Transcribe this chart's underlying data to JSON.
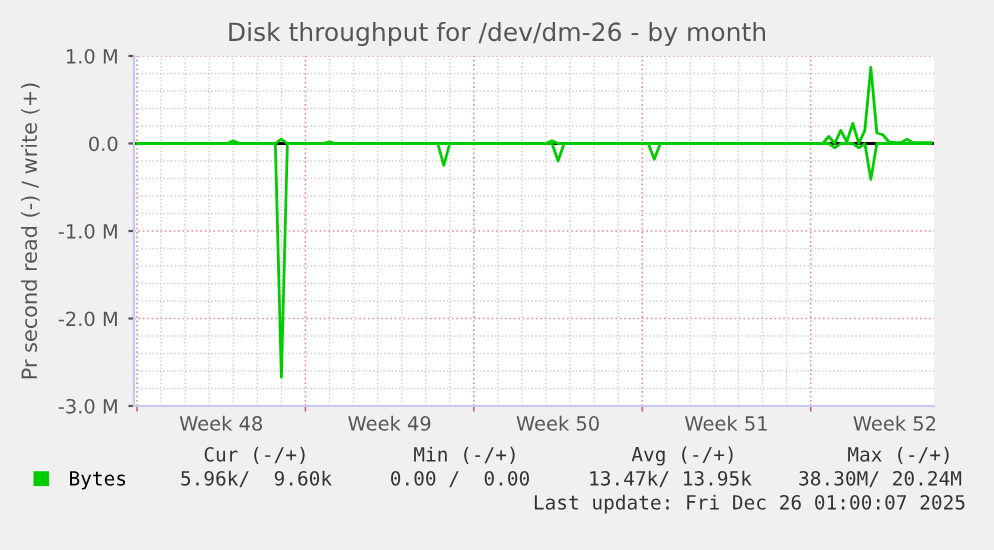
{
  "chart_data": {
    "type": "line",
    "title": "Disk throughput for /dev/dm-26 - by month",
    "ylabel": "Pr second read (-) / write (+)",
    "categories": [
      null,
      null,
      null,
      null,
      null,
      null,
      null,
      null,
      null,
      null,
      null,
      null,
      null,
      null,
      "Week 48",
      null,
      null,
      null,
      null,
      null,
      null,
      null,
      null,
      null,
      null,
      null,
      null,
      null,
      null,
      null,
      null,
      null,
      null,
      null,
      null,
      null,
      null,
      null,
      null,
      null,
      null,
      null,
      "Week 49",
      null,
      null,
      null,
      null,
      null,
      null,
      null,
      null,
      null,
      null,
      null,
      null,
      null,
      null,
      null,
      null,
      null,
      null,
      null,
      null,
      null,
      null,
      null,
      null,
      null,
      null,
      null,
      "Week 50",
      null,
      null,
      null,
      null,
      null,
      null,
      null,
      null,
      null,
      null,
      null,
      null,
      null,
      null,
      null,
      null,
      null,
      null,
      null,
      null,
      null,
      null,
      null,
      null,
      null,
      null,
      null,
      "Week 51",
      null,
      null,
      null,
      null,
      null,
      null,
      null,
      null,
      null,
      null,
      null,
      null,
      null,
      null,
      null,
      null,
      null,
      null,
      null,
      null,
      null,
      null,
      null,
      null,
      null,
      null,
      null,
      "Week 52",
      null,
      null,
      null,
      null,
      null,
      null
    ],
    "ylim": [
      -3,
      1
    ],
    "yticks": [
      {
        "value": -3,
        "label": "-3.0 M"
      },
      {
        "value": -2,
        "label": "-2.0 M"
      },
      {
        "value": -1,
        "label": "-1.0 M"
      },
      {
        "value": 0,
        "label": "0.0"
      },
      {
        "value": 1,
        "label": "1.0 M"
      }
    ],
    "grid": true,
    "legend": "bottom left",
    "marker": "none",
    "line_style": "solid",
    "ref_lines": [
      {
        "axis": "y",
        "value": 0,
        "color": "#000000"
      }
    ],
    "series": [
      {
        "color": "#00cc00",
        "values": [
          0,
          0,
          0,
          0,
          0,
          0,
          0,
          0,
          0,
          0,
          0,
          0,
          0,
          0,
          0,
          0,
          0,
          0,
          0,
          0,
          0,
          0,
          0,
          0,
          -2.67,
          0,
          0,
          0,
          0,
          0,
          0,
          0,
          0,
          0,
          0,
          0,
          0,
          0,
          0,
          0,
          0,
          0,
          0,
          0,
          0,
          0,
          0,
          0,
          0,
          0,
          0,
          -0.25,
          0,
          0,
          0,
          0,
          0,
          0,
          0,
          0,
          0,
          0,
          0,
          0,
          0,
          0,
          0,
          0,
          0,
          0,
          -0.2,
          0,
          0,
          0,
          0,
          0,
          0,
          0,
          0,
          0,
          0,
          0,
          0,
          0,
          0,
          0,
          -0.18,
          0,
          0,
          0,
          0,
          0,
          0,
          0,
          0,
          0,
          0,
          0,
          0,
          0,
          0,
          0,
          0,
          0,
          0,
          0,
          0,
          0,
          0,
          0,
          0,
          0,
          0,
          0,
          0,
          0,
          -0.05,
          0,
          0,
          0,
          -0.05,
          0,
          -0.41,
          0,
          0,
          0,
          0,
          0,
          0,
          0,
          0,
          0,
          0
        ]
      },
      {
        "name": "Bytes",
        "color": "#00cc00",
        "values": [
          0,
          0,
          0,
          0,
          0,
          0,
          0,
          0,
          0,
          0,
          0,
          0,
          0,
          0,
          0,
          0,
          0.03,
          0,
          0,
          0,
          0,
          0,
          0,
          0,
          0.05,
          0,
          0,
          0,
          0,
          0,
          0,
          0,
          0.02,
          0,
          0,
          0,
          0,
          0,
          0,
          0,
          0,
          0,
          0,
          0,
          0,
          0,
          0,
          0,
          0,
          0,
          0,
          0,
          0,
          0,
          0,
          0,
          0,
          0,
          0,
          0,
          0,
          0,
          0,
          0,
          0,
          0,
          0,
          0,
          0,
          0.03,
          0,
          0,
          0,
          0,
          0,
          0,
          0,
          0,
          0,
          0,
          0,
          0,
          0,
          0,
          0,
          0,
          0,
          0,
          0,
          0,
          0,
          0,
          0,
          0,
          0,
          0,
          0,
          0,
          0,
          0,
          0,
          0,
          0,
          0,
          0,
          0,
          0,
          0,
          0,
          0,
          0,
          0,
          0,
          0,
          0,
          0.08,
          0,
          0.15,
          0.02,
          0.23,
          0,
          0.15,
          0.87,
          0.12,
          0.1,
          0.02,
          0.01,
          0.01,
          0.05,
          0.01,
          0.01,
          0.01,
          0.01
        ]
      }
    ],
    "annotations": [
      "Cur (-/+)",
      "Min (-/+)",
      "Avg (-/+)",
      "Max (-/+)",
      "5.96k/  9.60k",
      "0.00 /  0.00",
      "13.47k/ 13.95k",
      "38.30M/ 20.24M",
      "Last update: Fri Dec 26 01:00:07 2025"
    ]
  }
}
